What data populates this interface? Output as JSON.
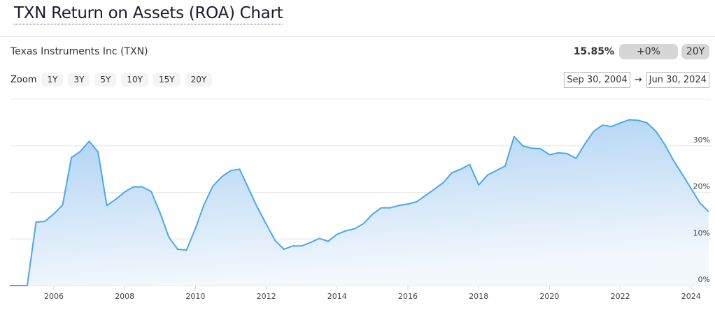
{
  "header": {
    "title": "TXN Return on Assets (ROA) Chart"
  },
  "summary": {
    "company": "Texas Instruments Inc (TXN)",
    "value": "15.85%",
    "change": "+0%",
    "period": "20Y"
  },
  "zoom": {
    "label": "Zoom",
    "options": [
      "1Y",
      "3Y",
      "5Y",
      "10Y",
      "15Y",
      "20Y"
    ]
  },
  "range": {
    "from": "Sep 30, 2004",
    "arrow": "→",
    "to": "Jun 30, 2024"
  },
  "colors": {
    "line": "#4aa8f0",
    "fill_top": "#a9cff2",
    "fill_bottom": "#f3f8fd"
  },
  "chart_data": {
    "type": "area",
    "ylim": [
      0,
      40
    ],
    "yticks": [
      "0%",
      "10%",
      "20%",
      "30%"
    ],
    "xticks": [
      "2006",
      "2008",
      "2010",
      "2012",
      "2014",
      "2016",
      "2018",
      "2020",
      "2022",
      "2024"
    ],
    "grid": true,
    "x": [
      "2004-09-30",
      "2004-12-31",
      "2005-03-31",
      "2005-06-30",
      "2005-09-30",
      "2005-12-31",
      "2006-03-31",
      "2006-06-30",
      "2006-09-30",
      "2006-12-31",
      "2007-03-31",
      "2007-06-30",
      "2007-09-30",
      "2007-12-31",
      "2008-03-31",
      "2008-06-30",
      "2008-09-30",
      "2008-12-31",
      "2009-03-31",
      "2009-06-30",
      "2009-09-30",
      "2009-12-31",
      "2010-03-31",
      "2010-06-30",
      "2010-09-30",
      "2010-12-31",
      "2011-03-31",
      "2011-06-30",
      "2011-09-30",
      "2011-12-31",
      "2012-03-31",
      "2012-06-30",
      "2012-09-30",
      "2012-12-31",
      "2013-03-31",
      "2013-06-30",
      "2013-09-30",
      "2013-12-31",
      "2014-03-31",
      "2014-06-30",
      "2014-09-30",
      "2014-12-31",
      "2015-03-31",
      "2015-06-30",
      "2015-09-30",
      "2015-12-31",
      "2016-03-31",
      "2016-06-30",
      "2016-09-30",
      "2016-12-31",
      "2017-03-31",
      "2017-06-30",
      "2017-09-30",
      "2017-12-31",
      "2018-03-31",
      "2018-06-30",
      "2018-09-30",
      "2018-12-31",
      "2019-03-31",
      "2019-06-30",
      "2019-09-30",
      "2019-12-31",
      "2020-03-31",
      "2020-06-30",
      "2020-09-30",
      "2020-12-31",
      "2021-03-31",
      "2021-06-30",
      "2021-09-30",
      "2021-12-31",
      "2022-03-31",
      "2022-06-30",
      "2022-09-30",
      "2022-12-31",
      "2023-03-31",
      "2023-06-30",
      "2023-09-30",
      "2023-12-31",
      "2024-03-31",
      "2024-06-30"
    ],
    "values": [
      0,
      0,
      0,
      13.6,
      13.8,
      15.4,
      17.3,
      27.5,
      28.8,
      31.0,
      28.7,
      17.2,
      18.5,
      20.1,
      21.2,
      21.2,
      20.2,
      15.6,
      10.4,
      7.8,
      7.6,
      12.3,
      17.5,
      21.4,
      23.4,
      24.7,
      25.0,
      20.9,
      16.8,
      13.2,
      9.7,
      7.8,
      8.5,
      8.5,
      9.25,
      10.1,
      9.5,
      11.0,
      11.75,
      12.2,
      13.3,
      15.3,
      16.7,
      16.7,
      17.2,
      17.5,
      18.0,
      19.35,
      20.7,
      22.1,
      24.25,
      25.0,
      26.0,
      21.6,
      23.7,
      24.7,
      25.65,
      32.0,
      30.0,
      29.5,
      29.4,
      28.1,
      28.5,
      28.35,
      27.3,
      30.4,
      33.1,
      34.45,
      34.15,
      34.9,
      35.6,
      35.5,
      35.0,
      33.2,
      30.4,
      26.95,
      23.95,
      20.85,
      17.75,
      15.85
    ]
  }
}
